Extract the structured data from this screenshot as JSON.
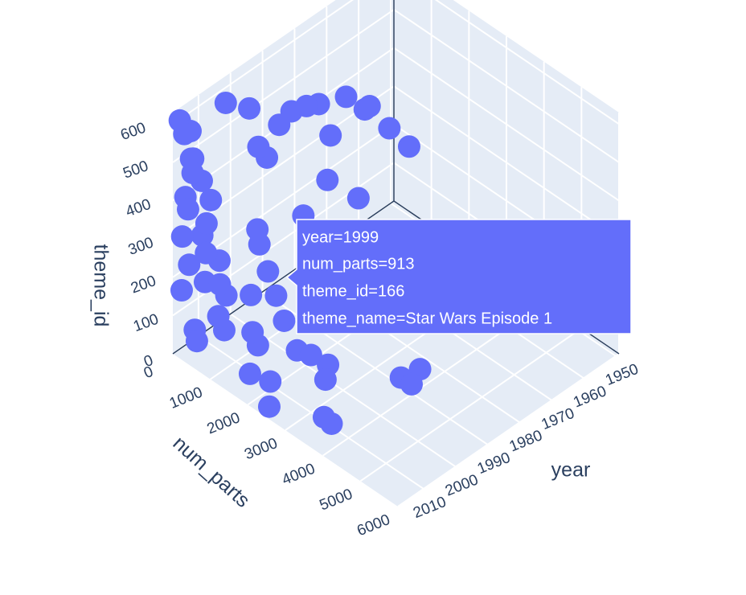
{
  "chart_data": {
    "type": "scatter3d",
    "x_label": "year",
    "y_label": "num_parts",
    "z_label": "theme_id",
    "color": "#636efa",
    "x": [
      2017,
      2016,
      2015,
      2017,
      2014,
      2016,
      2013,
      2017,
      2012,
      2015,
      2017,
      2011,
      2016,
      2014,
      2017,
      2010,
      2015,
      2013,
      2017,
      2008,
      2016,
      2012,
      2017,
      2009,
      2015,
      2014,
      2011,
      2016,
      2006,
      2003,
      1999,
      2001,
      1998,
      2002,
      2005,
      2000,
      1985,
      1990,
      1995,
      1980,
      1988,
      1978,
      1993,
      2000,
      2005,
      1975,
      1984,
      1998,
      2003,
      1992,
      1970,
      1987,
      2008,
      1996,
      2006,
      2010,
      1992,
      1996,
      1995,
      2009,
      2012,
      2013
    ],
    "y": [
      100,
      300,
      50,
      400,
      200,
      600,
      100,
      250,
      500,
      150,
      700,
      300,
      80,
      900,
      350,
      200,
      600,
      1000,
      150,
      400,
      1200,
      700,
      500,
      1500,
      1800,
      300,
      2000,
      2400,
      1100,
      800,
      913,
      1300,
      600,
      1600,
      2200,
      2600,
      1800,
      1500,
      1200,
      2000,
      1000,
      1700,
      700,
      500,
      300,
      2100,
      1300,
      800,
      1000,
      1900,
      2200,
      2300,
      1400,
      1600,
      2800,
      3000,
      4370,
      4200,
      4400,
      3300,
      3720,
      3600
    ],
    "z": [
      610,
      590,
      560,
      530,
      500,
      480,
      450,
      420,
      400,
      370,
      350,
      320,
      300,
      280,
      250,
      230,
      210,
      190,
      170,
      150,
      130,
      110,
      90,
      70,
      50,
      30,
      20,
      10,
      60,
      120,
      166,
      140,
      210,
      100,
      80,
      40,
      600,
      590,
      580,
      560,
      540,
      520,
      500,
      570,
      600,
      480,
      460,
      450,
      520,
      430,
      410,
      380,
      360,
      340,
      200,
      150,
      100,
      90,
      80,
      100,
      30,
      45
    ],
    "xlim": [
      1949,
      2018
    ],
    "xticks": [
      1950,
      1960,
      1970,
      1980,
      1990,
      2000,
      2010
    ],
    "ylim": [
      0,
      6000
    ],
    "yticks": [
      0,
      1000,
      2000,
      3000,
      4000,
      5000,
      6000
    ],
    "zlim": [
      0,
      630
    ],
    "zticks": [
      0,
      100,
      200,
      300,
      400,
      500,
      600
    ],
    "grid": true,
    "hover": {
      "lines": [
        "year=1999",
        "num_parts=913",
        "theme_id=166",
        "theme_name=Star Wars Episode 1"
      ]
    }
  }
}
